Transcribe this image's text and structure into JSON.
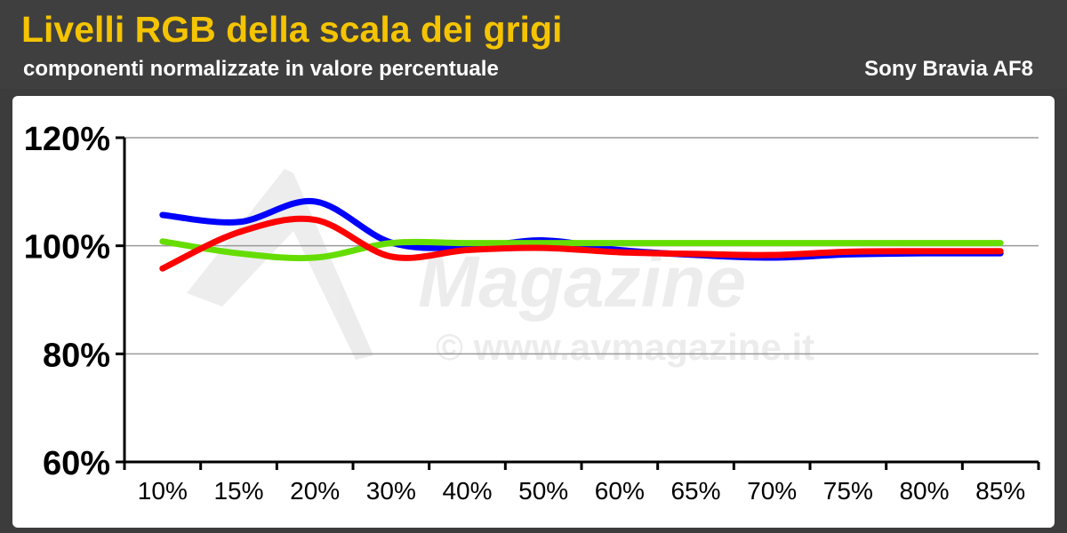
{
  "header": {
    "title": "Livelli RGB della scala dei grigi",
    "subtitle": "componenti normalizzate in valore percentuale",
    "brand": "Sony Bravia AF8"
  },
  "watermark": {
    "logo_text": "Magazine",
    "url_text": "© www.avmagazine.it"
  },
  "colors": {
    "background": "#3c3c3c",
    "title": "#f5c400",
    "blue": "#0000ff",
    "green": "#66dd00",
    "red": "#ff0000",
    "grid": "#9a9a9a"
  },
  "chart_data": {
    "type": "line",
    "title": "Livelli RGB della scala dei grigi",
    "subtitle": "componenti normalizzate in valore percentuale",
    "categories": [
      "10%",
      "15%",
      "20%",
      "30%",
      "40%",
      "50%",
      "60%",
      "65%",
      "70%",
      "75%",
      "80%",
      "85%"
    ],
    "y_ticks": [
      "60%",
      "80%",
      "100%",
      "120%"
    ],
    "ylim": [
      60,
      120
    ],
    "grid": true,
    "series": [
      {
        "color": "#0000ff",
        "values": [
          105.7,
          104.4,
          108.2,
          100.6,
          99.7,
          101.0,
          99.2,
          98.3,
          97.8,
          98.4,
          98.6,
          98.6
        ]
      },
      {
        "color": "#66dd00",
        "values": [
          100.8,
          98.6,
          97.8,
          100.5,
          100.5,
          100.5,
          100.5,
          100.5,
          100.5,
          100.5,
          100.5,
          100.5
        ]
      },
      {
        "color": "#ff0000",
        "values": [
          95.8,
          102.5,
          104.8,
          98.0,
          99.2,
          99.6,
          98.8,
          98.5,
          98.3,
          98.9,
          99.0,
          99.0
        ]
      }
    ]
  }
}
